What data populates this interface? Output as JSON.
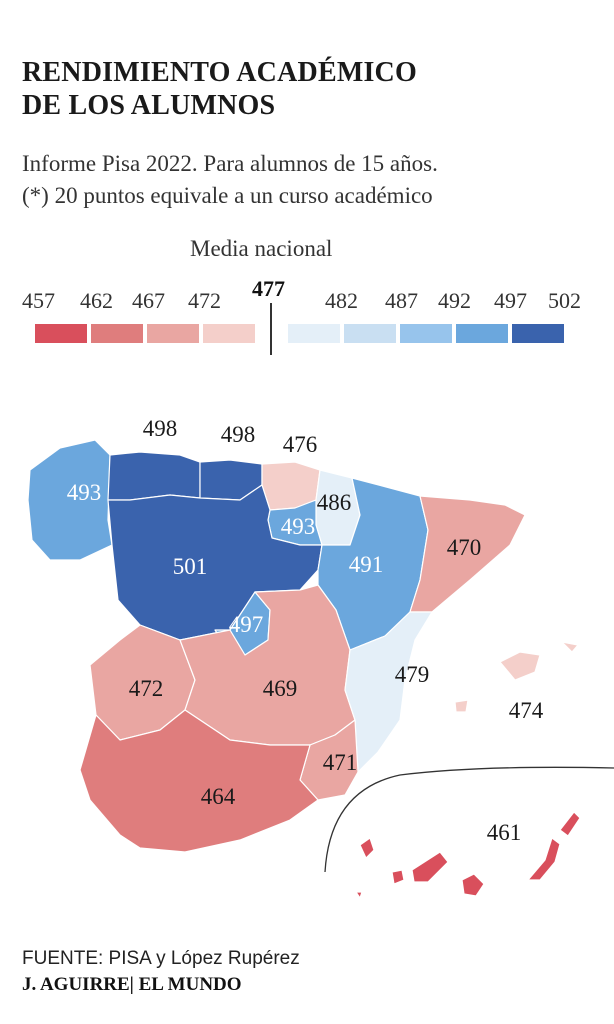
{
  "title_line1": "RENDIMIENTO ACADÉMICO",
  "title_line2": "DE LOS ALUMNOS",
  "subtitle_line1": "Informe Pisa 2022. Para alumnos de 15 años.",
  "subtitle_line2": "(*) 20 puntos equivale a un curso académico",
  "legend": {
    "title": "Media nacional",
    "national_mean": "477",
    "ticks": [
      "457",
      "462",
      "467",
      "472",
      "482",
      "487",
      "492",
      "497",
      "502"
    ],
    "colors": [
      "#d94f5c",
      "#df7d7d",
      "#e9a6a2",
      "#f4cfca",
      "#e4eff8",
      "#c9dff2",
      "#97c4ec",
      "#6ba7dd",
      "#3a63ad"
    ]
  },
  "regions": [
    {
      "name": "Galicia",
      "value": "493",
      "color": "#6ba7dd"
    },
    {
      "name": "Asturias",
      "value": "498",
      "color": "#3a63ad"
    },
    {
      "name": "Cantabria",
      "value": "498",
      "color": "#3a63ad"
    },
    {
      "name": "País Vasco",
      "value": "476",
      "color": "#f4cfca"
    },
    {
      "name": "Navarra",
      "value": "486",
      "color": "#e4eff8"
    },
    {
      "name": "La Rioja",
      "value": "493",
      "color": "#6ba7dd"
    },
    {
      "name": "Castilla y León",
      "value": "501",
      "color": "#3a63ad"
    },
    {
      "name": "Aragón",
      "value": "491",
      "color": "#6ba7dd"
    },
    {
      "name": "Cataluña",
      "value": "470",
      "color": "#e9a6a2"
    },
    {
      "name": "Madrid",
      "value": "497",
      "color": "#6ba7dd"
    },
    {
      "name": "Extremadura",
      "value": "472",
      "color": "#e9a6a2"
    },
    {
      "name": "Castilla-La Mancha",
      "value": "469",
      "color": "#e9a6a2"
    },
    {
      "name": "Comunidad Valenciana",
      "value": "479",
      "color": "#e4eff8"
    },
    {
      "name": "Murcia",
      "value": "471",
      "color": "#e9a6a2"
    },
    {
      "name": "Andalucía",
      "value": "464",
      "color": "#df7d7d"
    },
    {
      "name": "Baleares",
      "value": "474",
      "color": "#f4cfca"
    },
    {
      "name": "Canarias",
      "value": "461",
      "color": "#d94f5c"
    }
  ],
  "source": "FUENTE: PISA y López Rupérez",
  "credit": "J. AGUIRRE| EL MUNDO"
}
